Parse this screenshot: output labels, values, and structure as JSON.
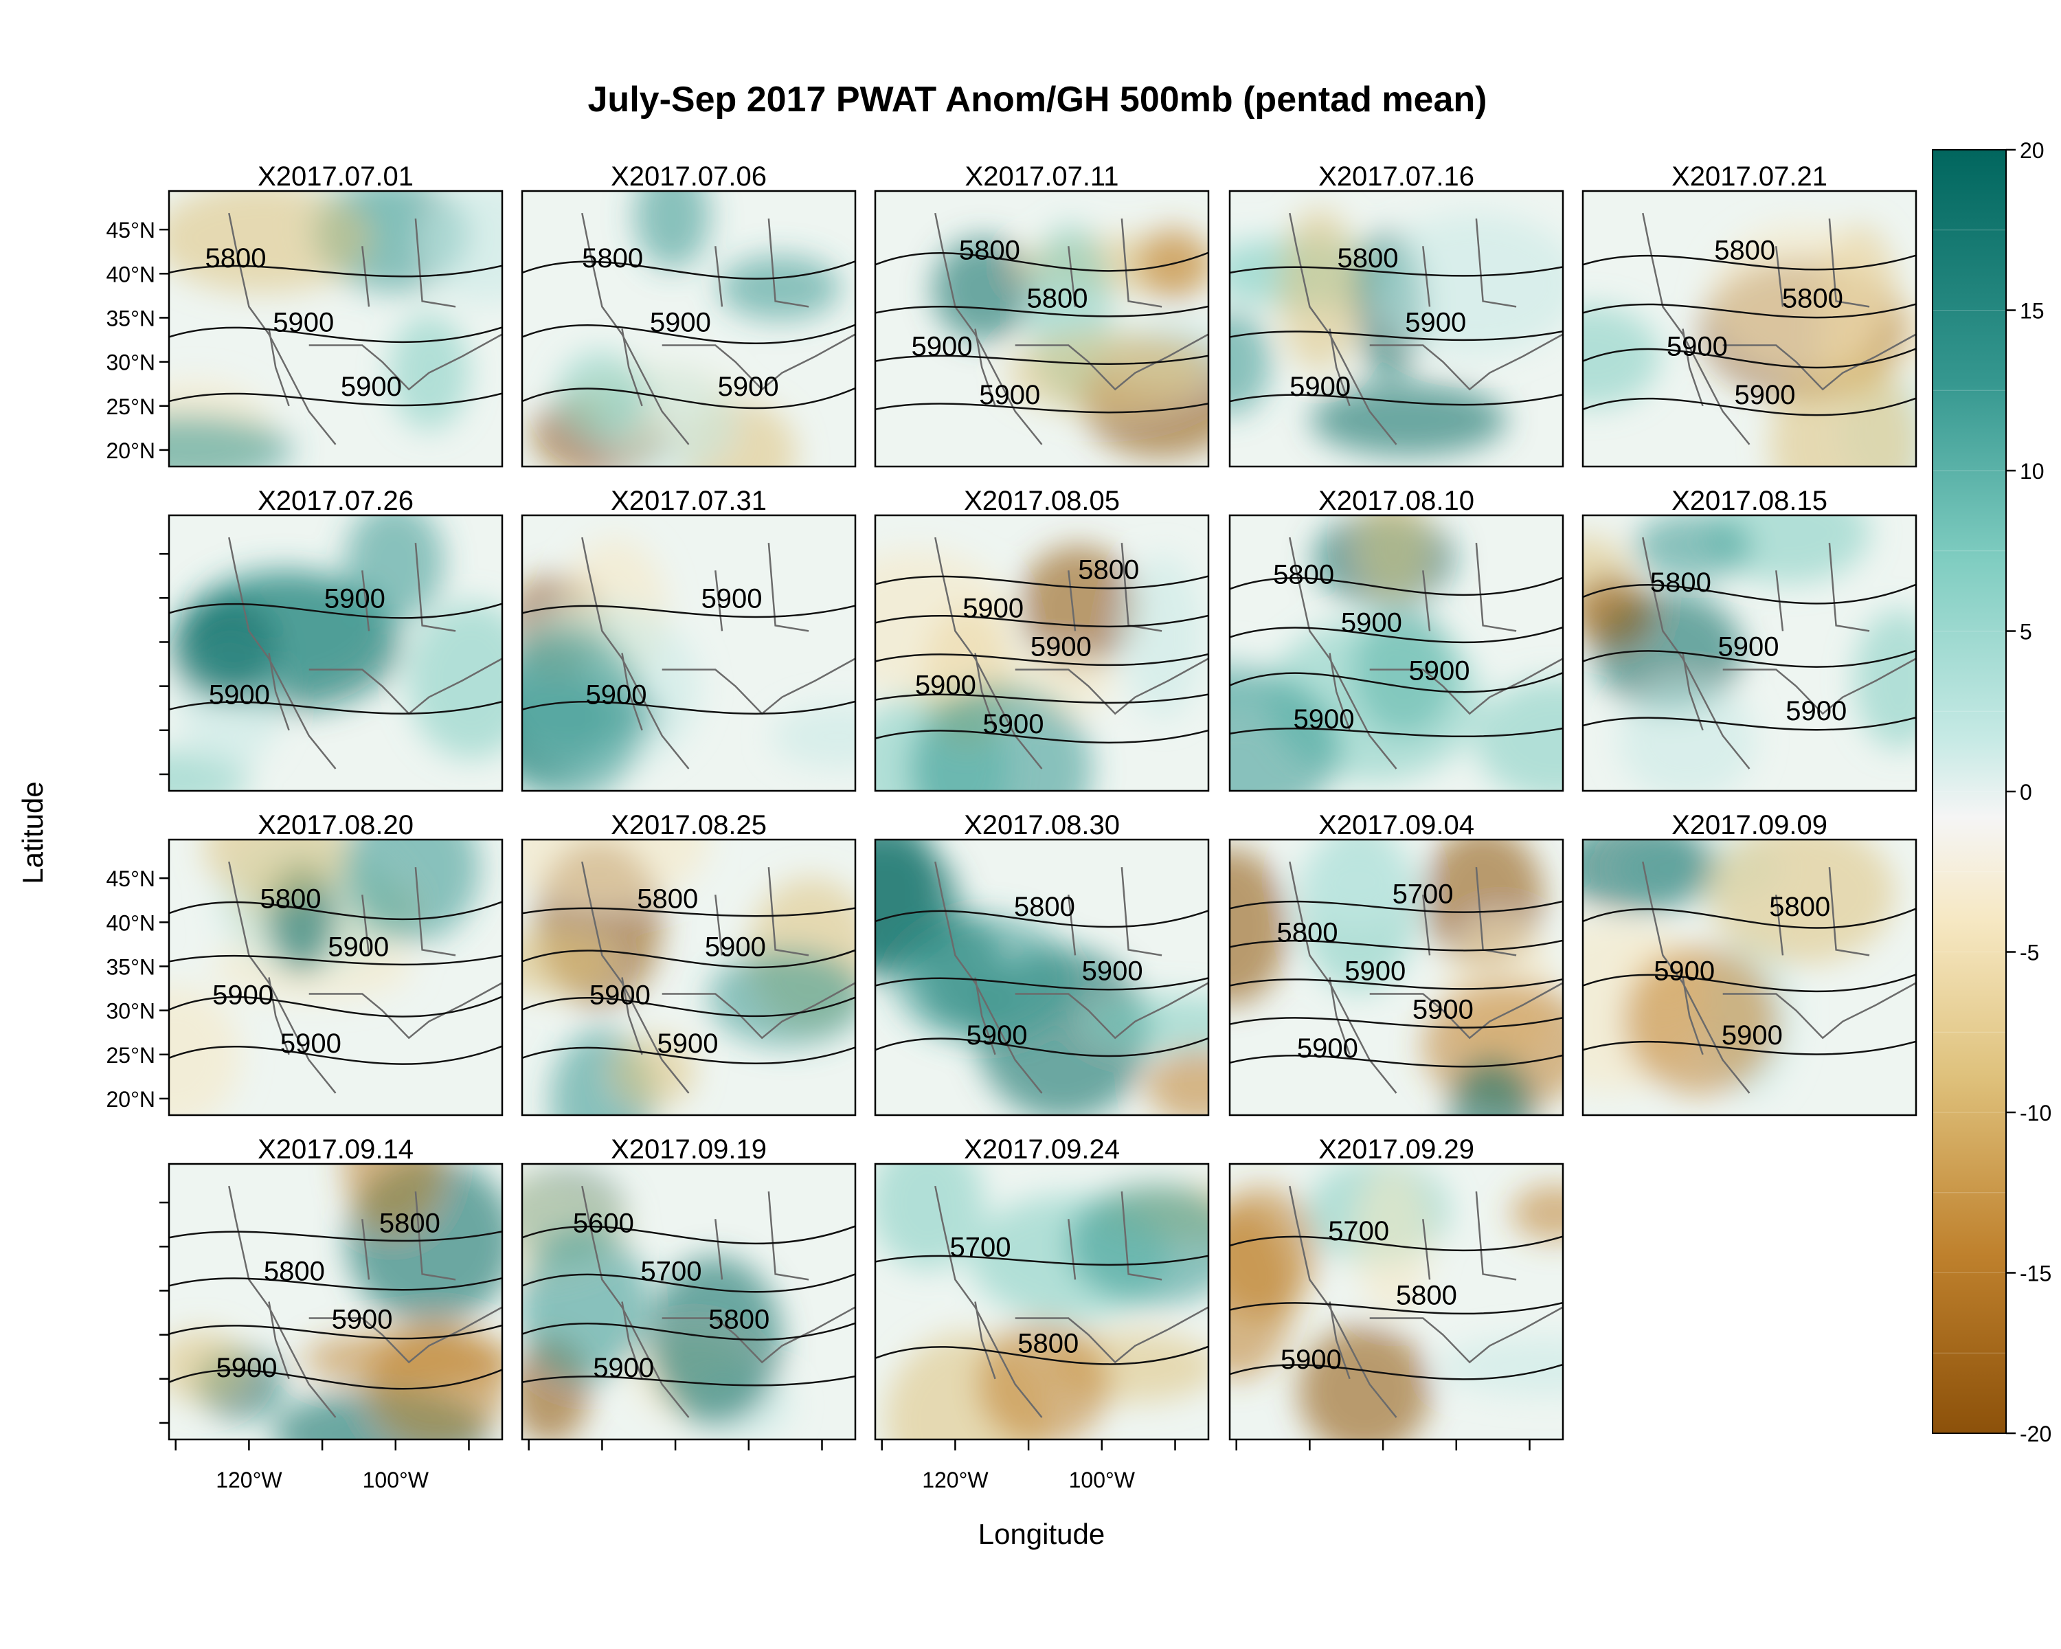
{
  "title": "July-Sep 2017 PWAT Anom/GH 500mb (pentad mean)",
  "xlabel": "Longitude",
  "ylabel": "Latitude",
  "panels": [
    {
      "name": "X2017.07.01",
      "labels": [
        "5800",
        "5900",
        "5900"
      ]
    },
    {
      "name": "X2017.07.06",
      "labels": [
        "5800",
        "5900",
        "5900"
      ]
    },
    {
      "name": "X2017.07.11",
      "labels": [
        "5800",
        "5800",
        "5900",
        "5900"
      ]
    },
    {
      "name": "X2017.07.16",
      "labels": [
        "5800",
        "5900",
        "5900"
      ]
    },
    {
      "name": "X2017.07.21",
      "labels": [
        "5800",
        "5800",
        "5900",
        "5900"
      ]
    },
    {
      "name": "X2017.07.26",
      "labels": [
        "5900",
        "5900"
      ]
    },
    {
      "name": "X2017.07.31",
      "labels": [
        "5900",
        "5900"
      ]
    },
    {
      "name": "X2017.08.05",
      "labels": [
        "5800",
        "5900",
        "5900",
        "5900",
        "5900"
      ]
    },
    {
      "name": "X2017.08.10",
      "labels": [
        "5800",
        "5900",
        "5900",
        "5900"
      ]
    },
    {
      "name": "X2017.08.15",
      "labels": [
        "5800",
        "5900",
        "5900"
      ]
    },
    {
      "name": "X2017.08.20",
      "labels": [
        "5800",
        "5900",
        "5900",
        "5900"
      ]
    },
    {
      "name": "X2017.08.25",
      "labels": [
        "5800",
        "5900",
        "5900",
        "5900"
      ]
    },
    {
      "name": "X2017.08.30",
      "labels": [
        "5800",
        "5900",
        "5900"
      ]
    },
    {
      "name": "X2017.09.04",
      "labels": [
        "5700",
        "5800",
        "5900",
        "5900",
        "5900"
      ]
    },
    {
      "name": "X2017.09.09",
      "labels": [
        "5800",
        "5900",
        "5900"
      ]
    },
    {
      "name": "X2017.09.14",
      "labels": [
        "5800",
        "5800",
        "5900",
        "5900"
      ]
    },
    {
      "name": "X2017.09.19",
      "labels": [
        "5600",
        "5700",
        "5800",
        "5900"
      ]
    },
    {
      "name": "X2017.09.24",
      "labels": [
        "5700",
        "5800"
      ]
    },
    {
      "name": "X2017.09.29",
      "labels": [
        "5700",
        "5800",
        "5900"
      ]
    }
  ],
  "lat_ticks": [
    "45°N",
    "40°N",
    "35°N",
    "30°N",
    "25°N",
    "20°N"
  ],
  "lon_ticks": [
    "120°W",
    "100°W"
  ],
  "colorbar": {
    "ticks": [
      "20",
      "15",
      "10",
      "5",
      "0",
      "-5",
      "-10",
      "-15",
      "-20"
    ],
    "min": -20,
    "max": 20,
    "colors": [
      "#003c30",
      "#01665e",
      "#35978f",
      "#80cdc1",
      "#c7eae5",
      "#f5f5f5",
      "#f6e8c3",
      "#dfc27d",
      "#bf812d",
      "#8c510a",
      "#543005"
    ]
  }
}
